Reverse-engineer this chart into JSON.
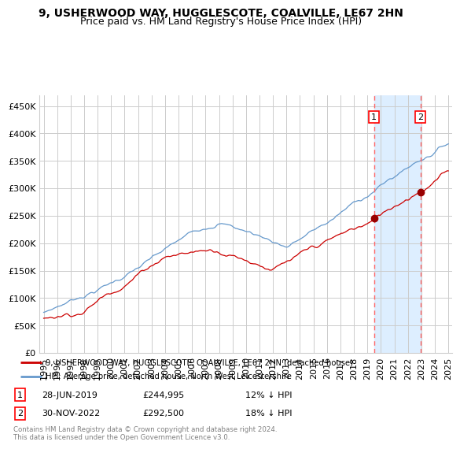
{
  "title": "9, USHERWOOD WAY, HUGGLESCOTE, COALVILLE, LE67 2HN",
  "subtitle": "Price paid vs. HM Land Registry's House Price Index (HPI)",
  "ylabel_ticks": [
    "£0",
    "£50K",
    "£100K",
    "£150K",
    "£200K",
    "£250K",
    "£300K",
    "£350K",
    "£400K",
    "£450K"
  ],
  "ytick_values": [
    0,
    50000,
    100000,
    150000,
    200000,
    250000,
    300000,
    350000,
    400000,
    450000
  ],
  "ylim": [
    0,
    470000
  ],
  "xlim_start": 1994.7,
  "xlim_end": 2025.3,
  "purchase1": {
    "date_num": 2019.49,
    "price": 244995,
    "label": "1"
  },
  "purchase2": {
    "date_num": 2022.92,
    "price": 292500,
    "label": "2"
  },
  "legend_line1": "9, USHERWOOD WAY, HUGGLESCOTE, COALVILLE, LE67 2HN (detached house)",
  "legend_line2": "HPI: Average price, detached house, North West Leicestershire",
  "annotation1_date": "28-JUN-2019",
  "annotation1_price": "£244,995",
  "annotation1_hpi": "12% ↓ HPI",
  "annotation2_date": "30-NOV-2022",
  "annotation2_price": "£292,500",
  "annotation2_hpi": "18% ↓ HPI",
  "footer": "Contains HM Land Registry data © Crown copyright and database right 2024.\nThis data is licensed under the Open Government Licence v3.0.",
  "line_red": "#cc0000",
  "line_blue": "#6699cc",
  "bg_highlight": "#ddeeff",
  "grid_color": "#cccccc",
  "title_fontsize": 10,
  "subtitle_fontsize": 9,
  "tick_fontsize": 8,
  "xtick_years": [
    1995,
    1996,
    1997,
    1998,
    1999,
    2000,
    2001,
    2002,
    2003,
    2004,
    2005,
    2006,
    2007,
    2008,
    2009,
    2010,
    2011,
    2012,
    2013,
    2014,
    2015,
    2016,
    2017,
    2018,
    2019,
    2020,
    2021,
    2022,
    2023,
    2024,
    2025
  ]
}
